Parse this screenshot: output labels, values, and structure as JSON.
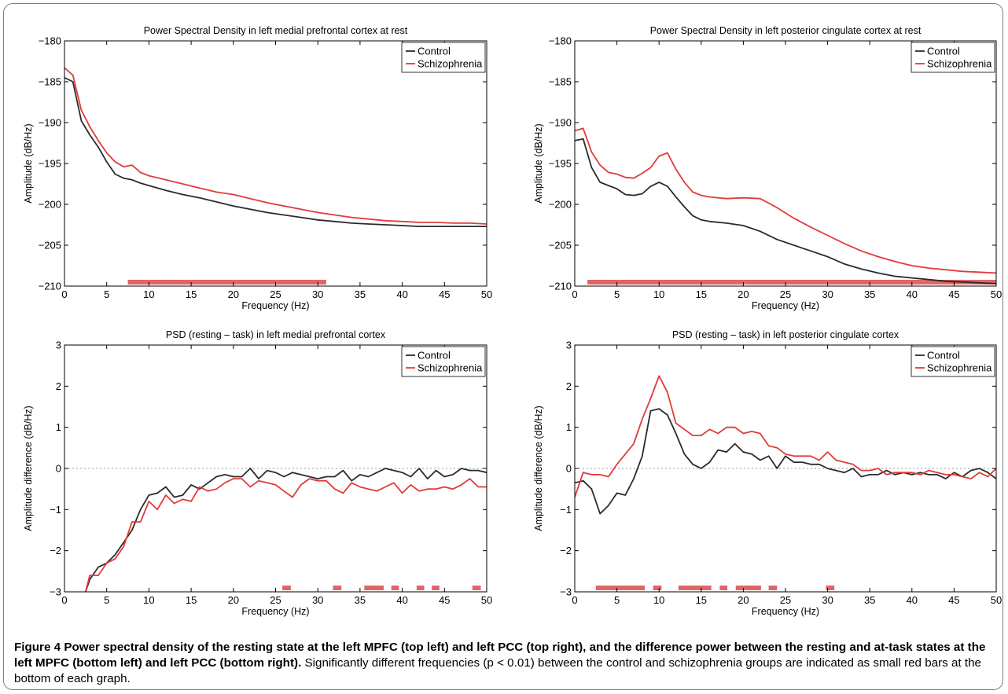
{
  "colors": {
    "control": "#2b2b2b",
    "schizophrenia": "#e23a3a",
    "sigbar": "#e06666",
    "zero_line": "#9a9a9a"
  },
  "caption": {
    "label": "Figure 4",
    "bold_text": "Power spectral density of the resting state at the left MPFC (top left) and left PCC (top right), and the difference power between the resting and at-task states at the left MPFC (bottom left) and left PCC (bottom right).",
    "normal_text": "Significantly different frequencies (p < 0.01) between the control and schizophrenia groups are indicated as small red bars at the bottom of each graph."
  },
  "chart_data": [
    {
      "type": "line",
      "title": "Power Spectral Density in left medial prefrontal cortex at rest",
      "xlabel": "Frequency (Hz)",
      "ylabel": "Amplitude (dB/Hz)",
      "xlim": [
        0,
        50
      ],
      "ylim": [
        -210,
        -180
      ],
      "xticks": [
        0,
        5,
        10,
        15,
        20,
        25,
        30,
        35,
        40,
        45,
        50
      ],
      "yticks": [
        -210,
        -205,
        -200,
        -195,
        -190,
        -185,
        -180
      ],
      "legend": [
        "Control",
        "Schizophrenia"
      ],
      "legend_position": "top-right",
      "grid": false,
      "series": [
        {
          "name": "Control",
          "x": [
            0,
            1,
            2,
            3,
            4,
            5,
            6,
            7,
            8,
            9,
            10,
            12,
            14,
            16,
            18,
            20,
            22,
            24,
            26,
            28,
            30,
            32,
            34,
            36,
            38,
            40,
            42,
            44,
            46,
            48,
            50
          ],
          "y": [
            -184.5,
            -185,
            -189.8,
            -191.5,
            -193,
            -194.8,
            -196.3,
            -196.8,
            -197,
            -197.4,
            -197.7,
            -198.3,
            -198.8,
            -199.2,
            -199.7,
            -200.2,
            -200.6,
            -201,
            -201.3,
            -201.6,
            -201.9,
            -202.1,
            -202.3,
            -202.4,
            -202.5,
            -202.6,
            -202.7,
            -202.7,
            -202.7,
            -202.7,
            -202.7
          ]
        },
        {
          "name": "Schizophrenia",
          "x": [
            0,
            1,
            2,
            3,
            4,
            5,
            6,
            7,
            8,
            9,
            10,
            12,
            14,
            16,
            18,
            20,
            22,
            24,
            26,
            28,
            30,
            32,
            34,
            36,
            38,
            40,
            42,
            44,
            46,
            48,
            50
          ],
          "y": [
            -183.3,
            -184.2,
            -188.5,
            -190.5,
            -192.2,
            -193.7,
            -194.8,
            -195.4,
            -195.2,
            -196.1,
            -196.5,
            -197,
            -197.5,
            -198,
            -198.5,
            -198.8,
            -199.3,
            -199.8,
            -200.2,
            -200.6,
            -201,
            -201.3,
            -201.6,
            -201.8,
            -202,
            -202.1,
            -202.2,
            -202.2,
            -202.3,
            -202.3,
            -202.4
          ]
        }
      ],
      "significant_ranges": [
        [
          7.5,
          31
        ]
      ]
    },
    {
      "type": "line",
      "title": "Power Spectral Density in left posterior cingulate cortex at rest",
      "xlabel": "Frequency (Hz)",
      "ylabel": "Amplitude (dB/Hz)",
      "xlim": [
        0,
        50
      ],
      "ylim": [
        -210,
        -180
      ],
      "xticks": [
        0,
        5,
        10,
        15,
        20,
        25,
        30,
        35,
        40,
        45,
        50
      ],
      "yticks": [
        -210,
        -205,
        -200,
        -195,
        -190,
        -185,
        -180
      ],
      "legend": [
        "Control",
        "Schizophrenia"
      ],
      "legend_position": "top-right",
      "grid": false,
      "series": [
        {
          "name": "Control",
          "x": [
            0,
            1,
            2,
            3,
            4,
            5,
            6,
            7,
            8,
            9,
            10,
            11,
            12,
            13,
            14,
            15,
            16,
            18,
            20,
            22,
            24,
            26,
            28,
            30,
            32,
            34,
            36,
            38,
            40,
            42,
            44,
            46,
            48,
            50
          ],
          "y": [
            -192.2,
            -192,
            -195.5,
            -197.3,
            -197.7,
            -198.1,
            -198.8,
            -198.9,
            -198.7,
            -197.8,
            -197.3,
            -197.8,
            -199.1,
            -200.3,
            -201.4,
            -201.9,
            -202.1,
            -202.3,
            -202.6,
            -203.3,
            -204.3,
            -205,
            -205.7,
            -206.4,
            -207.3,
            -207.9,
            -208.4,
            -208.8,
            -209,
            -209.2,
            -209.4,
            -209.5,
            -209.6,
            -209.7
          ]
        },
        {
          "name": "Schizophrenia",
          "x": [
            0,
            1,
            2,
            3,
            4,
            5,
            6,
            7,
            8,
            9,
            10,
            11,
            12,
            13,
            14,
            15,
            16,
            18,
            20,
            22,
            24,
            26,
            28,
            30,
            32,
            34,
            36,
            38,
            40,
            42,
            44,
            46,
            48,
            50
          ],
          "y": [
            -191,
            -190.7,
            -193.6,
            -195.2,
            -196.1,
            -196.3,
            -196.7,
            -196.8,
            -196.2,
            -195.5,
            -194.1,
            -193.7,
            -195.7,
            -197.3,
            -198.5,
            -198.9,
            -199.1,
            -199.3,
            -199.2,
            -199.3,
            -200.4,
            -201.7,
            -202.8,
            -203.8,
            -204.8,
            -205.7,
            -206.4,
            -207,
            -207.5,
            -207.8,
            -208,
            -208.2,
            -208.3,
            -208.4
          ]
        }
      ],
      "significant_ranges": [
        [
          1.5,
          50
        ]
      ]
    },
    {
      "type": "line",
      "title": "PSD (resting – task) in left medial prefrontal cortex",
      "xlabel": "Frequency (Hz)",
      "ylabel": "Amplitude difference (dB/Hz)",
      "xlim": [
        0,
        50
      ],
      "ylim": [
        -3,
        3
      ],
      "xticks": [
        0,
        5,
        10,
        15,
        20,
        25,
        30,
        35,
        40,
        45,
        50
      ],
      "yticks": [
        -3,
        -2,
        -1,
        0,
        1,
        2,
        3
      ],
      "legend": [
        "Control",
        "Schizophrenia"
      ],
      "legend_position": "top-right",
      "grid": false,
      "zero_line": true,
      "series": [
        {
          "name": "Control",
          "x": [
            2.5,
            3,
            4,
            5,
            6,
            7,
            8,
            9,
            10,
            11,
            12,
            13,
            14,
            15,
            16,
            17,
            18,
            19,
            20,
            21,
            22,
            23,
            24,
            25,
            26,
            27,
            28,
            29,
            30,
            31,
            32,
            33,
            34,
            35,
            36,
            37,
            38,
            39,
            40,
            41,
            42,
            43,
            44,
            45,
            46,
            47,
            48,
            49,
            50
          ],
          "y": [
            -3,
            -2.7,
            -2.4,
            -2.3,
            -2.1,
            -1.8,
            -1.5,
            -1,
            -0.65,
            -0.6,
            -0.45,
            -0.7,
            -0.65,
            -0.4,
            -0.5,
            -0.35,
            -0.2,
            -0.15,
            -0.2,
            -0.2,
            0,
            -0.25,
            -0.05,
            -0.1,
            -0.2,
            -0.1,
            -0.15,
            -0.2,
            -0.25,
            -0.2,
            -0.2,
            -0.05,
            -0.3,
            -0.15,
            -0.2,
            -0.1,
            0,
            -0.05,
            -0.1,
            -0.2,
            0,
            -0.25,
            -0.05,
            -0.2,
            -0.15,
            0,
            -0.05,
            -0.05,
            -0.1
          ]
        },
        {
          "name": "Schizophrenia",
          "x": [
            2.5,
            3,
            4,
            5,
            6,
            7,
            8,
            9,
            10,
            11,
            12,
            13,
            14,
            15,
            16,
            17,
            18,
            19,
            20,
            21,
            22,
            23,
            24,
            25,
            26,
            27,
            28,
            29,
            30,
            31,
            32,
            33,
            34,
            35,
            36,
            37,
            38,
            39,
            40,
            41,
            42,
            43,
            44,
            45,
            46,
            47,
            48,
            49,
            50
          ],
          "y": [
            -3,
            -2.6,
            -2.6,
            -2.3,
            -2.2,
            -1.9,
            -1.3,
            -1.3,
            -0.8,
            -1,
            -0.65,
            -0.85,
            -0.75,
            -0.8,
            -0.45,
            -0.55,
            -0.5,
            -0.35,
            -0.25,
            -0.25,
            -0.45,
            -0.3,
            -0.35,
            -0.4,
            -0.55,
            -0.7,
            -0.4,
            -0.25,
            -0.3,
            -0.3,
            -0.5,
            -0.6,
            -0.35,
            -0.45,
            -0.5,
            -0.55,
            -0.45,
            -0.35,
            -0.6,
            -0.4,
            -0.55,
            -0.5,
            -0.5,
            -0.45,
            -0.5,
            -0.4,
            -0.25,
            -0.45,
            -0.45
          ]
        }
      ],
      "significant_ranges": [
        [
          25.8,
          26.8
        ],
        [
          31.8,
          32.8
        ],
        [
          35.5,
          37.8
        ],
        [
          38.7,
          39.6
        ],
        [
          41.7,
          42.6
        ],
        [
          43.5,
          44.4
        ],
        [
          48.3,
          49.3
        ]
      ]
    },
    {
      "type": "line",
      "title": "PSD (resting – task) in left posterior cingulate cortex",
      "xlabel": "Frequency (Hz)",
      "ylabel": "Amplitude difference (dB/Hz)",
      "xlim": [
        0,
        50
      ],
      "ylim": [
        -3,
        3
      ],
      "xticks": [
        0,
        5,
        10,
        15,
        20,
        25,
        30,
        35,
        40,
        45,
        50
      ],
      "yticks": [
        -3,
        -2,
        -1,
        0,
        1,
        2,
        3
      ],
      "legend": [
        "Control",
        "Schizophrenia"
      ],
      "legend_position": "top-right",
      "grid": false,
      "zero_line": true,
      "series": [
        {
          "name": "Control",
          "x": [
            0,
            1,
            2,
            3,
            4,
            5,
            6,
            7,
            8,
            9,
            10,
            11,
            12,
            13,
            14,
            15,
            16,
            17,
            18,
            19,
            20,
            21,
            22,
            23,
            24,
            25,
            26,
            27,
            28,
            29,
            30,
            31,
            32,
            33,
            34,
            35,
            36,
            37,
            38,
            39,
            40,
            41,
            42,
            43,
            44,
            45,
            46,
            47,
            48,
            49,
            50
          ],
          "y": [
            -0.35,
            -0.3,
            -0.5,
            -1.1,
            -0.9,
            -0.6,
            -0.65,
            -0.25,
            0.3,
            1.4,
            1.45,
            1.3,
            0.85,
            0.35,
            0.1,
            0,
            0.15,
            0.45,
            0.4,
            0.6,
            0.4,
            0.35,
            0.2,
            0.3,
            0,
            0.3,
            0.15,
            0.15,
            0.1,
            0.1,
            0,
            -0.05,
            -0.1,
            0,
            -0.2,
            -0.15,
            -0.15,
            -0.05,
            -0.15,
            -0.1,
            -0.15,
            -0.1,
            -0.15,
            -0.15,
            -0.25,
            -0.1,
            -0.2,
            -0.05,
            0,
            -0.1,
            -0.25
          ]
        },
        {
          "name": "Schizophrenia",
          "x": [
            0,
            1,
            2,
            3,
            4,
            5,
            6,
            7,
            8,
            9,
            10,
            11,
            12,
            13,
            14,
            15,
            16,
            17,
            18,
            19,
            20,
            21,
            22,
            23,
            24,
            25,
            26,
            27,
            28,
            29,
            30,
            31,
            32,
            33,
            34,
            35,
            36,
            37,
            38,
            39,
            40,
            41,
            42,
            43,
            44,
            45,
            46,
            47,
            48,
            49,
            50
          ],
          "y": [
            -0.7,
            -0.1,
            -0.15,
            -0.15,
            -0.2,
            0.1,
            0.35,
            0.6,
            1.2,
            1.7,
            2.25,
            1.85,
            1.1,
            0.95,
            0.8,
            0.8,
            0.95,
            0.85,
            1,
            1,
            0.85,
            0.9,
            0.85,
            0.55,
            0.5,
            0.35,
            0.3,
            0.3,
            0.3,
            0.2,
            0.4,
            0.2,
            0.15,
            0.1,
            -0.05,
            -0.05,
            0,
            -0.15,
            -0.1,
            -0.1,
            -0.1,
            -0.15,
            -0.05,
            -0.1,
            -0.15,
            -0.15,
            -0.2,
            -0.25,
            -0.1,
            -0.2,
            0
          ]
        }
      ],
      "significant_ranges": [
        [
          2.5,
          8.3
        ],
        [
          9.3,
          10.3
        ],
        [
          12.3,
          16.2
        ],
        [
          17.2,
          18.1
        ],
        [
          19.1,
          22.1
        ],
        [
          23,
          24
        ],
        [
          29.8,
          30.8
        ]
      ]
    }
  ]
}
